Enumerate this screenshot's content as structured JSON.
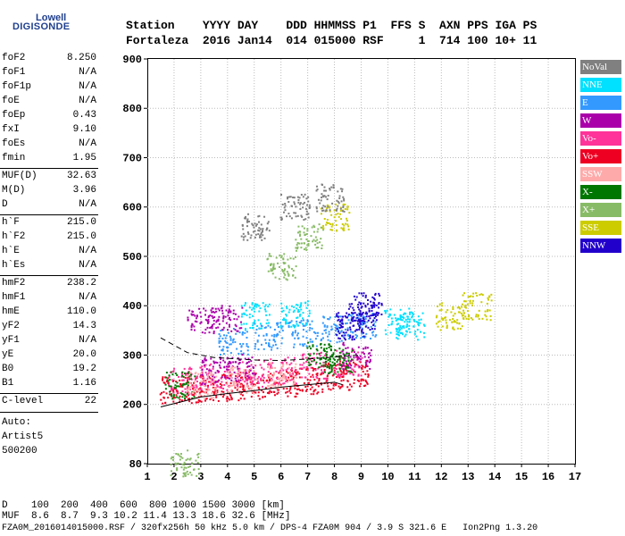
{
  "logo": {
    "brand_top": "Lowell",
    "brand_bottom": "DIGISONDE"
  },
  "header": {
    "row1": "Station    YYYY DAY    DDD HHMMSS P1  FFS S  AXN PPS IGA PS",
    "row2": "Fortaleza  2016 Jan14  014 015000 RSF     1  714 100 10+ 11"
  },
  "params": [
    {
      "name": "foF2",
      "value": "8.250"
    },
    {
      "name": "foF1",
      "value": "N/A"
    },
    {
      "name": "foF1p",
      "value": "N/A"
    },
    {
      "name": "foE",
      "value": "N/A"
    },
    {
      "name": "foEp",
      "value": "0.43"
    },
    {
      "name": "fxI",
      "value": "9.10"
    },
    {
      "name": "foEs",
      "value": "N/A"
    },
    {
      "name": "fmin",
      "value": "1.95"
    },
    {
      "name": "MUF(D)",
      "value": "32.63"
    },
    {
      "name": "M(D)",
      "value": "3.96"
    },
    {
      "name": "D",
      "value": "N/A"
    },
    {
      "name": "h`F",
      "value": "215.0"
    },
    {
      "name": "h`F2",
      "value": "215.0"
    },
    {
      "name": "h`E",
      "value": "N/A"
    },
    {
      "name": "h`Es",
      "value": "N/A"
    },
    {
      "name": "hmF2",
      "value": "238.2"
    },
    {
      "name": "hmF1",
      "value": "N/A"
    },
    {
      "name": "hmE",
      "value": "110.0"
    },
    {
      "name": "yF2",
      "value": "14.3"
    },
    {
      "name": "yF1",
      "value": "N/A"
    },
    {
      "name": "yE",
      "value": "20.0"
    },
    {
      "name": "B0",
      "value": "19.2"
    },
    {
      "name": "B1",
      "value": "1.16"
    },
    {
      "name": "C-level",
      "value": "22"
    }
  ],
  "auto": {
    "line1": "Auto:",
    "line2": "Artist5",
    "line3": "500200"
  },
  "footer": {
    "d_line": "D    100  200  400  600  800 1000 1500 3000 [km]",
    "muf_line": "MUF  8.6  8.7  9.3 10.2 11.4 13.3 18.6 32.6 [MHz]",
    "file_line": "FZA0M_2016014015000.RSF / 320fx256h 50 kHz 5.0 km / DPS-4 FZA0M 904 / 3.9 S 321.6 E   Ion2Png 1.3.20"
  },
  "legend": [
    {
      "label": "NoVal",
      "color": "#808080"
    },
    {
      "label": "NNE",
      "color": "#00e0ff"
    },
    {
      "label": "E",
      "color": "#3399ff"
    },
    {
      "label": "W",
      "color": "#aa00aa"
    },
    {
      "label": "Vo-",
      "color": "#ff3399"
    },
    {
      "label": "Vo+",
      "color": "#ee0022"
    },
    {
      "label": "SSW",
      "color": "#ffaaaa"
    },
    {
      "label": "X-",
      "color": "#007700"
    },
    {
      "label": "X+",
      "color": "#88bb66"
    },
    {
      "label": "SSE",
      "color": "#cccc00"
    },
    {
      "label": "NNW",
      "color": "#2200cc"
    }
  ],
  "chart_data": {
    "type": "scatter",
    "xlim": [
      1,
      17
    ],
    "ylim": [
      80,
      900
    ],
    "x_ticks": [
      "1",
      "2",
      "3",
      "4",
      "5",
      "6",
      "7",
      "8",
      "9",
      "10",
      "11",
      "12",
      "13",
      "14",
      "15",
      "16",
      "17"
    ],
    "y_ticks": [
      "80",
      "200",
      "300",
      "400",
      "500",
      "600",
      "700",
      "800",
      "900"
    ],
    "grid": true,
    "legend_position": "right",
    "series": [
      {
        "name": "Vo+",
        "color": "#ee0022",
        "clusters": [
          [
            2.0,
            230
          ],
          [
            3.0,
            232
          ],
          [
            4.0,
            236
          ],
          [
            5.0,
            240
          ],
          [
            6.0,
            245
          ],
          [
            7.0,
            250
          ],
          [
            8.0,
            258
          ],
          [
            8.7,
            265
          ]
        ]
      },
      {
        "name": "Vo-",
        "color": "#ff3399",
        "clusters": [
          [
            2.3,
            250
          ],
          [
            3.5,
            258
          ],
          [
            4.8,
            265
          ],
          [
            6.0,
            270
          ],
          [
            7.2,
            280
          ],
          [
            8.5,
            285
          ]
        ]
      },
      {
        "name": "E",
        "color": "#3399ff",
        "clusters": [
          [
            4.2,
            330
          ],
          [
            5.5,
            340
          ],
          [
            6.8,
            345
          ],
          [
            8.0,
            355
          ],
          [
            9.0,
            360
          ]
        ]
      },
      {
        "name": "W",
        "color": "#aa00aa",
        "clusters": [
          [
            3.5,
            270
          ],
          [
            4.5,
            275
          ],
          [
            3.0,
            370
          ],
          [
            4.0,
            375
          ],
          [
            8.8,
            300
          ]
        ]
      },
      {
        "name": "NNE",
        "color": "#00e0ff",
        "clusters": [
          [
            10.4,
            370
          ],
          [
            10.8,
            360
          ],
          [
            5.0,
            380
          ],
          [
            6.5,
            385
          ]
        ]
      },
      {
        "name": "NNW",
        "color": "#2200cc",
        "clusters": [
          [
            9.0,
            380
          ],
          [
            9.2,
            400
          ],
          [
            8.6,
            360
          ]
        ]
      },
      {
        "name": "X-",
        "color": "#007700",
        "clusters": [
          [
            7.5,
            300
          ],
          [
            8.1,
            290
          ],
          [
            2.2,
            240
          ]
        ]
      },
      {
        "name": "X+",
        "color": "#88bb66",
        "clusters": [
          [
            2.4,
            82
          ],
          [
            6.0,
            480
          ],
          [
            7.0,
            540
          ]
        ]
      },
      {
        "name": "SSE",
        "color": "#cccc00",
        "clusters": [
          [
            8.0,
            580
          ],
          [
            12.3,
            380
          ],
          [
            13.3,
            400
          ]
        ]
      },
      {
        "name": "SSW",
        "color": "#ffaaaa",
        "clusters": [
          [
            3.0,
            240
          ],
          [
            4.5,
            250
          ],
          [
            6.0,
            260
          ]
        ]
      },
      {
        "name": "NoVal",
        "color": "#808080",
        "clusters": [
          [
            5.0,
            560
          ],
          [
            6.5,
            600
          ],
          [
            7.8,
            620
          ]
        ]
      }
    ],
    "trace": [
      [
        1.5,
        195
      ],
      [
        3,
        215
      ],
      [
        4,
        222
      ],
      [
        5,
        228
      ],
      [
        6,
        235
      ],
      [
        7,
        240
      ],
      [
        8,
        245
      ],
      [
        8.3,
        240
      ]
    ],
    "dashed_trace": [
      [
        1.5,
        335
      ],
      [
        2.5,
        305
      ],
      [
        3.5,
        295
      ],
      [
        5,
        290
      ],
      [
        6,
        289
      ],
      [
        7,
        292
      ],
      [
        8,
        296
      ],
      [
        9,
        300
      ]
    ]
  }
}
